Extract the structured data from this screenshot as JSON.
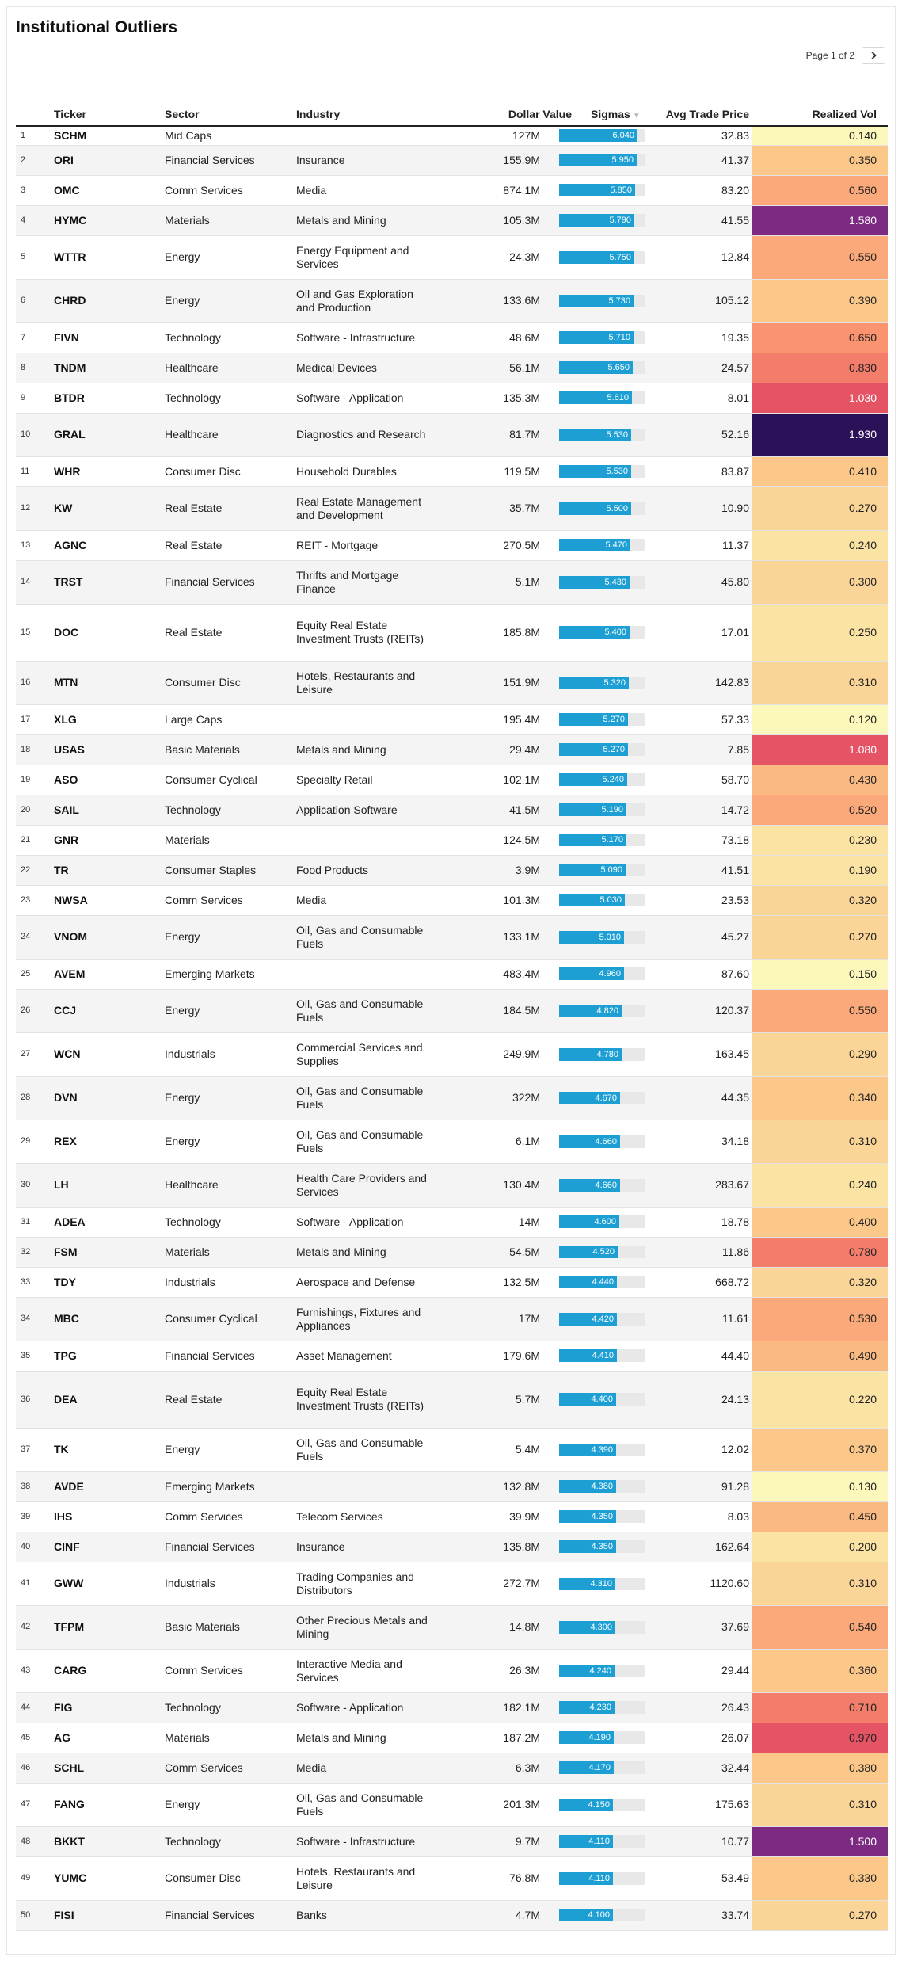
{
  "title": "Institutional Outliers",
  "pager": {
    "text": "Page 1 of 2",
    "next_icon": "chevron-right-icon"
  },
  "columns": {
    "ticker": "Ticker",
    "sector": "Sector",
    "industry": "Industry",
    "dollar_value": "Dollar Value",
    "sigmas": "Sigmas",
    "avg_trade_price": "Avg Trade Price",
    "realized_vol": "Realized Vol"
  },
  "sigma_max": 6.04,
  "rows": [
    {
      "n": "1",
      "ticker": "SCHM",
      "sector": "Mid Caps",
      "industry": "",
      "dv": "127M",
      "sigma": 6.04,
      "sigma_label": "6.040",
      "price": "32.83",
      "vol": 0.14,
      "vol_label": "0.140"
    },
    {
      "n": "2",
      "ticker": "ORI",
      "sector": "Financial Services",
      "industry": "Insurance",
      "dv": "155.9M",
      "sigma": 5.95,
      "sigma_label": "5.950",
      "price": "41.37",
      "vol": 0.35,
      "vol_label": "0.350"
    },
    {
      "n": "3",
      "ticker": "OMC",
      "sector": "Comm Services",
      "industry": "Media",
      "dv": "874.1M",
      "sigma": 5.85,
      "sigma_label": "5.850",
      "price": "83.20",
      "vol": 0.56,
      "vol_label": "0.560"
    },
    {
      "n": "4",
      "ticker": "HYMC",
      "sector": "Materials",
      "industry": "Metals and Mining",
      "dv": "105.3M",
      "sigma": 5.79,
      "sigma_label": "5.790",
      "price": "41.55",
      "vol": 1.58,
      "vol_label": "1.580"
    },
    {
      "n": "5",
      "ticker": "WTTR",
      "sector": "Energy",
      "industry": "Energy Equipment and Services",
      "dv": "24.3M",
      "sigma": 5.75,
      "sigma_label": "5.750",
      "price": "12.84",
      "vol": 0.55,
      "vol_label": "0.550"
    },
    {
      "n": "6",
      "ticker": "CHRD",
      "sector": "Energy",
      "industry": "Oil and Gas Exploration and Production",
      "dv": "133.6M",
      "sigma": 5.73,
      "sigma_label": "5.730",
      "price": "105.12",
      "vol": 0.39,
      "vol_label": "0.390"
    },
    {
      "n": "7",
      "ticker": "FIVN",
      "sector": "Technology",
      "industry": "Software - Infrastructure",
      "dv": "48.6M",
      "sigma": 5.71,
      "sigma_label": "5.710",
      "price": "19.35",
      "vol": 0.65,
      "vol_label": "0.650"
    },
    {
      "n": "8",
      "ticker": "TNDM",
      "sector": "Healthcare",
      "industry": "Medical Devices",
      "dv": "56.1M",
      "sigma": 5.65,
      "sigma_label": "5.650",
      "price": "24.57",
      "vol": 0.83,
      "vol_label": "0.830"
    },
    {
      "n": "9",
      "ticker": "BTDR",
      "sector": "Technology",
      "industry": "Software - Application",
      "dv": "135.3M",
      "sigma": 5.61,
      "sigma_label": "5.610",
      "price": "8.01",
      "vol": 1.03,
      "vol_label": "1.030"
    },
    {
      "n": "10",
      "ticker": "GRAL",
      "sector": "Healthcare",
      "industry": "Diagnostics and Research",
      "dv": "81.7M",
      "sigma": 5.53,
      "sigma_label": "5.530",
      "price": "52.16",
      "vol": 1.93,
      "vol_label": "1.930"
    },
    {
      "n": "11",
      "ticker": "WHR",
      "sector": "Consumer Disc",
      "industry": "Household Durables",
      "dv": "119.5M",
      "sigma": 5.53,
      "sigma_label": "5.530",
      "price": "83.87",
      "vol": 0.41,
      "vol_label": "0.410"
    },
    {
      "n": "12",
      "ticker": "KW",
      "sector": "Real Estate",
      "industry": "Real Estate Management and Development",
      "dv": "35.7M",
      "sigma": 5.5,
      "sigma_label": "5.500",
      "price": "10.90",
      "vol": 0.27,
      "vol_label": "0.270"
    },
    {
      "n": "13",
      "ticker": "AGNC",
      "sector": "Real Estate",
      "industry": "REIT - Mortgage",
      "dv": "270.5M",
      "sigma": 5.47,
      "sigma_label": "5.470",
      "price": "11.37",
      "vol": 0.24,
      "vol_label": "0.240"
    },
    {
      "n": "14",
      "ticker": "TRST",
      "sector": "Financial Services",
      "industry": "Thrifts and Mortgage Finance",
      "dv": "5.1M",
      "sigma": 5.43,
      "sigma_label": "5.430",
      "price": "45.80",
      "vol": 0.3,
      "vol_label": "0.300"
    },
    {
      "n": "15",
      "ticker": "DOC",
      "sector": "Real Estate",
      "industry": "Equity Real Estate Investment Trusts (REITs)",
      "dv": "185.8M",
      "sigma": 5.4,
      "sigma_label": "5.400",
      "price": "17.01",
      "vol": 0.25,
      "vol_label": "0.250"
    },
    {
      "n": "16",
      "ticker": "MTN",
      "sector": "Consumer Disc",
      "industry": "Hotels, Restaurants and Leisure",
      "dv": "151.9M",
      "sigma": 5.32,
      "sigma_label": "5.320",
      "price": "142.83",
      "vol": 0.31,
      "vol_label": "0.310"
    },
    {
      "n": "17",
      "ticker": "XLG",
      "sector": "Large Caps",
      "industry": "",
      "dv": "195.4M",
      "sigma": 5.27,
      "sigma_label": "5.270",
      "price": "57.33",
      "vol": 0.12,
      "vol_label": "0.120"
    },
    {
      "n": "18",
      "ticker": "USAS",
      "sector": "Basic Materials",
      "industry": "Metals and Mining",
      "dv": "29.4M",
      "sigma": 5.27,
      "sigma_label": "5.270",
      "price": "7.85",
      "vol": 1.08,
      "vol_label": "1.080"
    },
    {
      "n": "19",
      "ticker": "ASO",
      "sector": "Consumer Cyclical",
      "industry": "Specialty Retail",
      "dv": "102.1M",
      "sigma": 5.24,
      "sigma_label": "5.240",
      "price": "58.70",
      "vol": 0.43,
      "vol_label": "0.430"
    },
    {
      "n": "20",
      "ticker": "SAIL",
      "sector": "Technology",
      "industry": "Application Software",
      "dv": "41.5M",
      "sigma": 5.19,
      "sigma_label": "5.190",
      "price": "14.72",
      "vol": 0.52,
      "vol_label": "0.520"
    },
    {
      "n": "21",
      "ticker": "GNR",
      "sector": "Materials",
      "industry": "",
      "dv": "124.5M",
      "sigma": 5.17,
      "sigma_label": "5.170",
      "price": "73.18",
      "vol": 0.23,
      "vol_label": "0.230"
    },
    {
      "n": "22",
      "ticker": "TR",
      "sector": "Consumer Staples",
      "industry": "Food Products",
      "dv": "3.9M",
      "sigma": 5.09,
      "sigma_label": "5.090",
      "price": "41.51",
      "vol": 0.19,
      "vol_label": "0.190"
    },
    {
      "n": "23",
      "ticker": "NWSA",
      "sector": "Comm Services",
      "industry": "Media",
      "dv": "101.3M",
      "sigma": 5.03,
      "sigma_label": "5.030",
      "price": "23.53",
      "vol": 0.32,
      "vol_label": "0.320"
    },
    {
      "n": "24",
      "ticker": "VNOM",
      "sector": "Energy",
      "industry": "Oil, Gas and Consumable Fuels",
      "dv": "133.1M",
      "sigma": 5.01,
      "sigma_label": "5.010",
      "price": "45.27",
      "vol": 0.27,
      "vol_label": "0.270"
    },
    {
      "n": "25",
      "ticker": "AVEM",
      "sector": "Emerging Markets",
      "industry": "",
      "dv": "483.4M",
      "sigma": 4.96,
      "sigma_label": "4.960",
      "price": "87.60",
      "vol": 0.15,
      "vol_label": "0.150"
    },
    {
      "n": "26",
      "ticker": "CCJ",
      "sector": "Energy",
      "industry": "Oil, Gas and Consumable Fuels",
      "dv": "184.5M",
      "sigma": 4.82,
      "sigma_label": "4.820",
      "price": "120.37",
      "vol": 0.55,
      "vol_label": "0.550"
    },
    {
      "n": "27",
      "ticker": "WCN",
      "sector": "Industrials",
      "industry": "Commercial Services and Supplies",
      "dv": "249.9M",
      "sigma": 4.78,
      "sigma_label": "4.780",
      "price": "163.45",
      "vol": 0.29,
      "vol_label": "0.290"
    },
    {
      "n": "28",
      "ticker": "DVN",
      "sector": "Energy",
      "industry": "Oil, Gas and Consumable Fuels",
      "dv": "322M",
      "sigma": 4.67,
      "sigma_label": "4.670",
      "price": "44.35",
      "vol": 0.34,
      "vol_label": "0.340"
    },
    {
      "n": "29",
      "ticker": "REX",
      "sector": "Energy",
      "industry": "Oil, Gas and Consumable Fuels",
      "dv": "6.1M",
      "sigma": 4.66,
      "sigma_label": "4.660",
      "price": "34.18",
      "vol": 0.31,
      "vol_label": "0.310"
    },
    {
      "n": "30",
      "ticker": "LH",
      "sector": "Healthcare",
      "industry": "Health Care Providers and Services",
      "dv": "130.4M",
      "sigma": 4.66,
      "sigma_label": "4.660",
      "price": "283.67",
      "vol": 0.24,
      "vol_label": "0.240"
    },
    {
      "n": "31",
      "ticker": "ADEA",
      "sector": "Technology",
      "industry": "Software - Application",
      "dv": "14M",
      "sigma": 4.6,
      "sigma_label": "4.600",
      "price": "18.78",
      "vol": 0.4,
      "vol_label": "0.400"
    },
    {
      "n": "32",
      "ticker": "FSM",
      "sector": "Materials",
      "industry": "Metals and Mining",
      "dv": "54.5M",
      "sigma": 4.52,
      "sigma_label": "4.520",
      "price": "11.86",
      "vol": 0.78,
      "vol_label": "0.780"
    },
    {
      "n": "33",
      "ticker": "TDY",
      "sector": "Industrials",
      "industry": "Aerospace and Defense",
      "dv": "132.5M",
      "sigma": 4.44,
      "sigma_label": "4.440",
      "price": "668.72",
      "vol": 0.32,
      "vol_label": "0.320"
    },
    {
      "n": "34",
      "ticker": "MBC",
      "sector": "Consumer Cyclical",
      "industry": "Furnishings, Fixtures and Appliances",
      "dv": "17M",
      "sigma": 4.42,
      "sigma_label": "4.420",
      "price": "11.61",
      "vol": 0.53,
      "vol_label": "0.530"
    },
    {
      "n": "35",
      "ticker": "TPG",
      "sector": "Financial Services",
      "industry": "Asset Management",
      "dv": "179.6M",
      "sigma": 4.41,
      "sigma_label": "4.410",
      "price": "44.40",
      "vol": 0.49,
      "vol_label": "0.490"
    },
    {
      "n": "36",
      "ticker": "DEA",
      "sector": "Real Estate",
      "industry": "Equity Real Estate Investment Trusts (REITs)",
      "dv": "5.7M",
      "sigma": 4.4,
      "sigma_label": "4.400",
      "price": "24.13",
      "vol": 0.22,
      "vol_label": "0.220"
    },
    {
      "n": "37",
      "ticker": "TK",
      "sector": "Energy",
      "industry": "Oil, Gas and Consumable Fuels",
      "dv": "5.4M",
      "sigma": 4.39,
      "sigma_label": "4.390",
      "price": "12.02",
      "vol": 0.37,
      "vol_label": "0.370"
    },
    {
      "n": "38",
      "ticker": "AVDE",
      "sector": "Emerging Markets",
      "industry": "",
      "dv": "132.8M",
      "sigma": 4.38,
      "sigma_label": "4.380",
      "price": "91.28",
      "vol": 0.13,
      "vol_label": "0.130"
    },
    {
      "n": "39",
      "ticker": "IHS",
      "sector": "Comm Services",
      "industry": "Telecom Services",
      "dv": "39.9M",
      "sigma": 4.35,
      "sigma_label": "4.350",
      "price": "8.03",
      "vol": 0.45,
      "vol_label": "0.450"
    },
    {
      "n": "40",
      "ticker": "CINF",
      "sector": "Financial Services",
      "industry": "Insurance",
      "dv": "135.8M",
      "sigma": 4.35,
      "sigma_label": "4.350",
      "price": "162.64",
      "vol": 0.2,
      "vol_label": "0.200"
    },
    {
      "n": "41",
      "ticker": "GWW",
      "sector": "Industrials",
      "industry": "Trading Companies and Distributors",
      "dv": "272.7M",
      "sigma": 4.31,
      "sigma_label": "4.310",
      "price": "1120.60",
      "vol": 0.31,
      "vol_label": "0.310"
    },
    {
      "n": "42",
      "ticker": "TFPM",
      "sector": "Basic Materials",
      "industry": "Other Precious Metals and Mining",
      "dv": "14.8M",
      "sigma": 4.3,
      "sigma_label": "4.300",
      "price": "37.69",
      "vol": 0.54,
      "vol_label": "0.540"
    },
    {
      "n": "43",
      "ticker": "CARG",
      "sector": "Comm Services",
      "industry": "Interactive Media and Services",
      "dv": "26.3M",
      "sigma": 4.24,
      "sigma_label": "4.240",
      "price": "29.44",
      "vol": 0.36,
      "vol_label": "0.360"
    },
    {
      "n": "44",
      "ticker": "FIG",
      "sector": "Technology",
      "industry": "Software - Application",
      "dv": "182.1M",
      "sigma": 4.23,
      "sigma_label": "4.230",
      "price": "26.43",
      "vol": 0.71,
      "vol_label": "0.710"
    },
    {
      "n": "45",
      "ticker": "AG",
      "sector": "Materials",
      "industry": "Metals and Mining",
      "dv": "187.2M",
      "sigma": 4.19,
      "sigma_label": "4.190",
      "price": "26.07",
      "vol": 0.97,
      "vol_label": "0.970"
    },
    {
      "n": "46",
      "ticker": "SCHL",
      "sector": "Comm Services",
      "industry": "Media",
      "dv": "6.3M",
      "sigma": 4.17,
      "sigma_label": "4.170",
      "price": "32.44",
      "vol": 0.38,
      "vol_label": "0.380"
    },
    {
      "n": "47",
      "ticker": "FANG",
      "sector": "Energy",
      "industry": "Oil, Gas and Consumable Fuels",
      "dv": "201.3M",
      "sigma": 4.15,
      "sigma_label": "4.150",
      "price": "175.63",
      "vol": 0.31,
      "vol_label": "0.310"
    },
    {
      "n": "48",
      "ticker": "BKKT",
      "sector": "Technology",
      "industry": "Software - Infrastructure",
      "dv": "9.7M",
      "sigma": 4.11,
      "sigma_label": "4.110",
      "price": "10.77",
      "vol": 1.5,
      "vol_label": "1.500"
    },
    {
      "n": "49",
      "ticker": "YUMC",
      "sector": "Consumer Disc",
      "industry": "Hotels, Restaurants and Leisure",
      "dv": "76.8M",
      "sigma": 4.11,
      "sigma_label": "4.110",
      "price": "53.49",
      "vol": 0.33,
      "vol_label": "0.330"
    },
    {
      "n": "50",
      "ticker": "FISI",
      "sector": "Financial Services",
      "industry": "Banks",
      "dv": "4.7M",
      "sigma": 4.1,
      "sigma_label": "4.100",
      "price": "33.74",
      "vol": 0.27,
      "vol_label": "0.270"
    }
  ]
}
